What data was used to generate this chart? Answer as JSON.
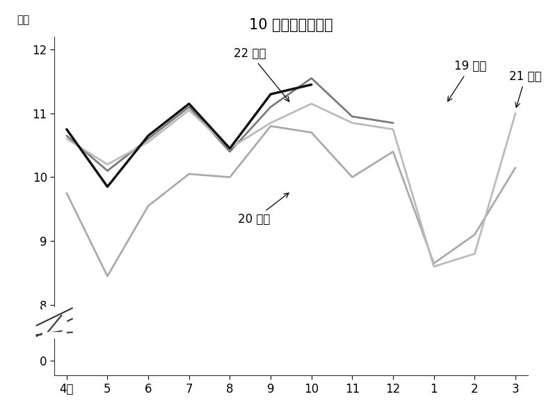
{
  "title": "10 月は１％アップ",
  "ylabel": "万台",
  "x_labels": [
    "4月",
    "5",
    "6",
    "7",
    "8",
    "9",
    "10",
    "11",
    "12",
    "1",
    "2",
    "3"
  ],
  "series": {
    "19年度": {
      "values": [
        10.65,
        10.1,
        10.6,
        11.1,
        10.4,
        11.1,
        11.55,
        10.95,
        10.85,
        null,
        null,
        null
      ],
      "color": "#7a7a7a",
      "linewidth": 2.0
    },
    "20年度": {
      "values": [
        9.75,
        8.45,
        9.55,
        10.05,
        10.0,
        10.8,
        10.7,
        10.0,
        10.4,
        8.65,
        9.1,
        10.15
      ],
      "color": "#aaaaaa",
      "linewidth": 2.0
    },
    "21年度": {
      "values": [
        10.6,
        10.2,
        10.55,
        11.05,
        10.45,
        10.85,
        11.15,
        10.85,
        10.75,
        8.6,
        8.8,
        11.0
      ],
      "color": "#bbbbbb",
      "linewidth": 2.0
    },
    "22年度": {
      "values": [
        10.75,
        9.85,
        10.65,
        11.15,
        10.45,
        11.3,
        11.45,
        null,
        null,
        null,
        null,
        null
      ],
      "color": "#111111",
      "linewidth": 2.5
    }
  },
  "background_color": "#ffffff",
  "font_size_title": 15,
  "font_size_labels": 12,
  "font_size_annotations": 12,
  "font_size_ylabel": 11
}
